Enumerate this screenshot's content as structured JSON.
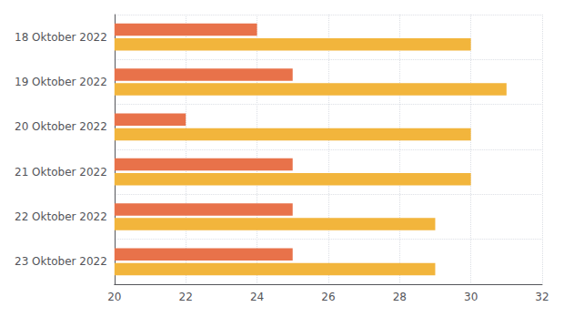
{
  "chart_data": {
    "type": "bar",
    "orientation": "horizontal",
    "categories": [
      "18 Oktober 2022",
      "19 Oktober 2022",
      "20 Oktober 2022",
      "21 Oktober 2022",
      "22 Oktober 2022",
      "23 Oktober 2022"
    ],
    "series": [
      {
        "color": "#E8724A",
        "values": [
          24,
          25,
          22,
          25,
          25,
          25
        ]
      },
      {
        "color": "#F2B53C",
        "values": [
          30,
          31,
          30,
          30,
          29,
          29
        ]
      }
    ],
    "xlim": [
      20,
      32
    ],
    "xticks": [
      20,
      22,
      24,
      26,
      28,
      30,
      32
    ],
    "grid": true
  }
}
